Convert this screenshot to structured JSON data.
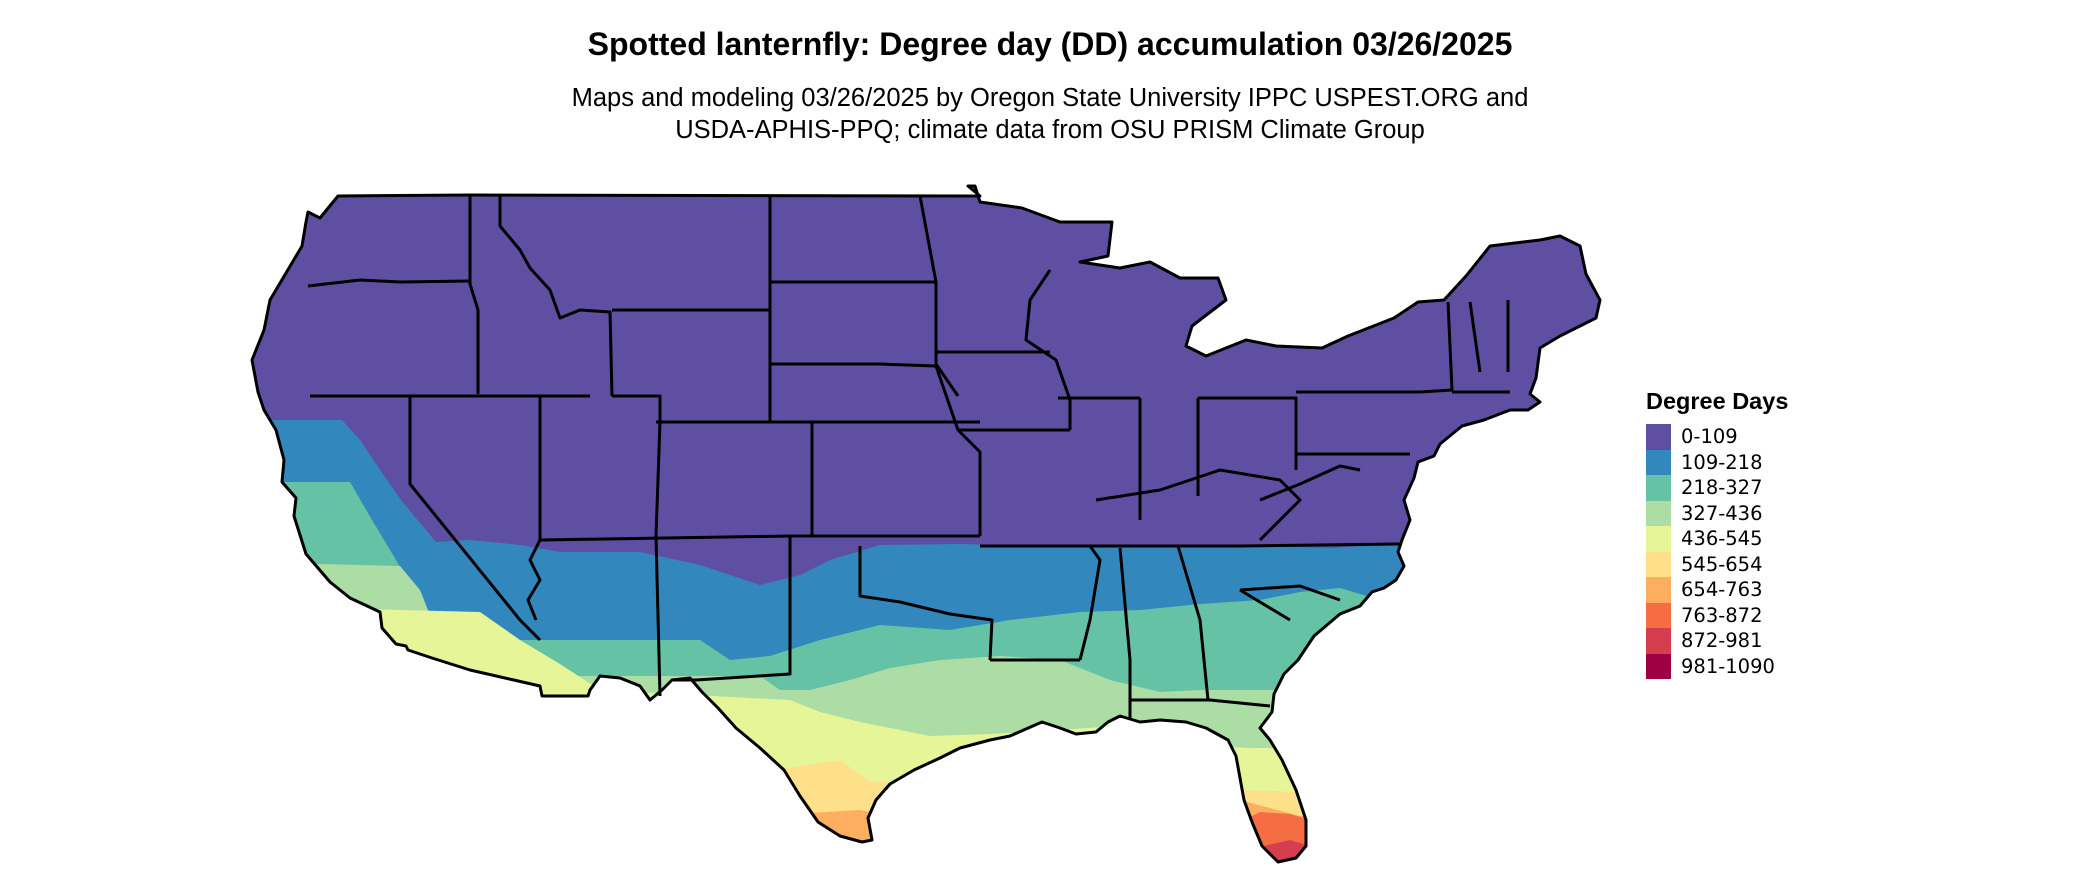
{
  "map": {
    "title": "Spotted lanternfly: Degree day (DD) accumulation 03/26/2025",
    "subtitle_line_1": "Maps and modeling 03/26/2025 by Oregon State University IPPC USPEST.ORG and",
    "subtitle_line_2": "USDA-APHIS-PPQ; climate data from OSU PRISM Climate Group",
    "region": "Contiguous United States",
    "outline_color": "#000000"
  },
  "legend": {
    "title": "Degree Days",
    "entries": [
      {
        "label": "0-109",
        "color": "#5e4fa2"
      },
      {
        "label": "109-218",
        "color": "#3288bd"
      },
      {
        "label": "218-327",
        "color": "#66c2a5"
      },
      {
        "label": "327-436",
        "color": "#abdda4"
      },
      {
        "label": "436-545",
        "color": "#e6f598"
      },
      {
        "label": "545-654",
        "color": "#fee08b"
      },
      {
        "label": "654-763",
        "color": "#fdae61"
      },
      {
        "label": "763-872",
        "color": "#f46d43"
      },
      {
        "label": "872-981",
        "color": "#d53e4f"
      },
      {
        "label": "981-1090",
        "color": "#9e0142"
      }
    ]
  }
}
